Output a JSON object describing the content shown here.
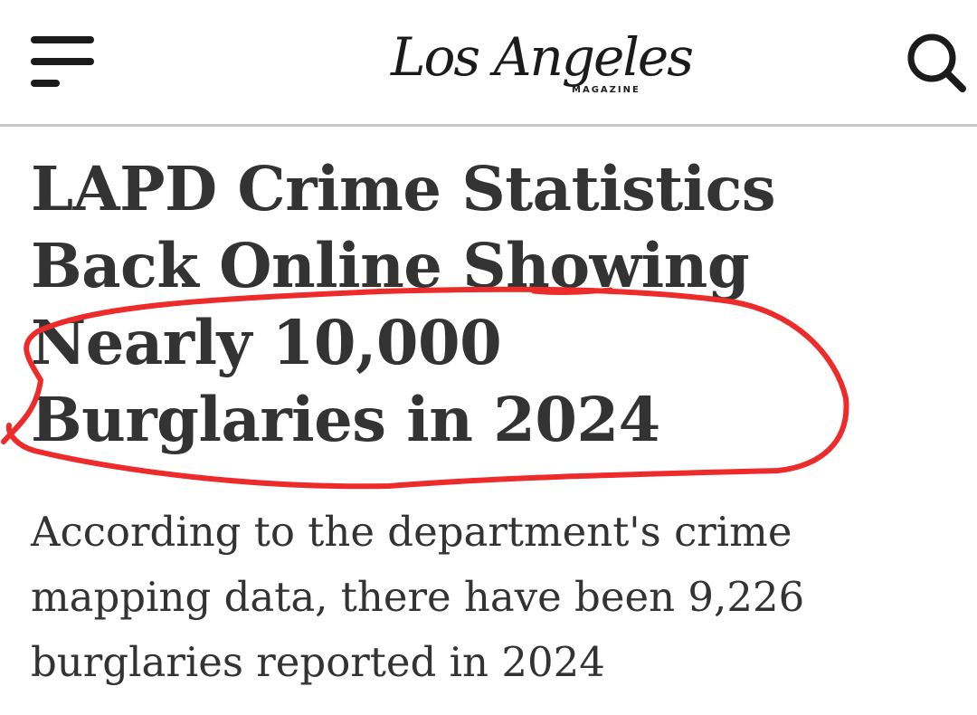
{
  "header": {
    "menu_icon": "hamburger-menu-icon",
    "logo_script": "Los Angeles",
    "logo_subtitle": "MAGAZINE",
    "search_icon": "search-icon"
  },
  "article": {
    "headline_lines": [
      "LAPD Crime Statistics",
      "Back Online Showing",
      "Nearly 10,000",
      "Burglaries in 2024"
    ],
    "summary_lines": [
      "According to the department's crime",
      "mapping data, there have been 9,226",
      "burglaries reported in 2024"
    ]
  },
  "annotation": {
    "shape": "hand-drawn-circle",
    "color": "#ee2b2b"
  },
  "colors": {
    "text": "#333333",
    "logo": "#1b1b1b",
    "divider": "#c9c9c9"
  }
}
